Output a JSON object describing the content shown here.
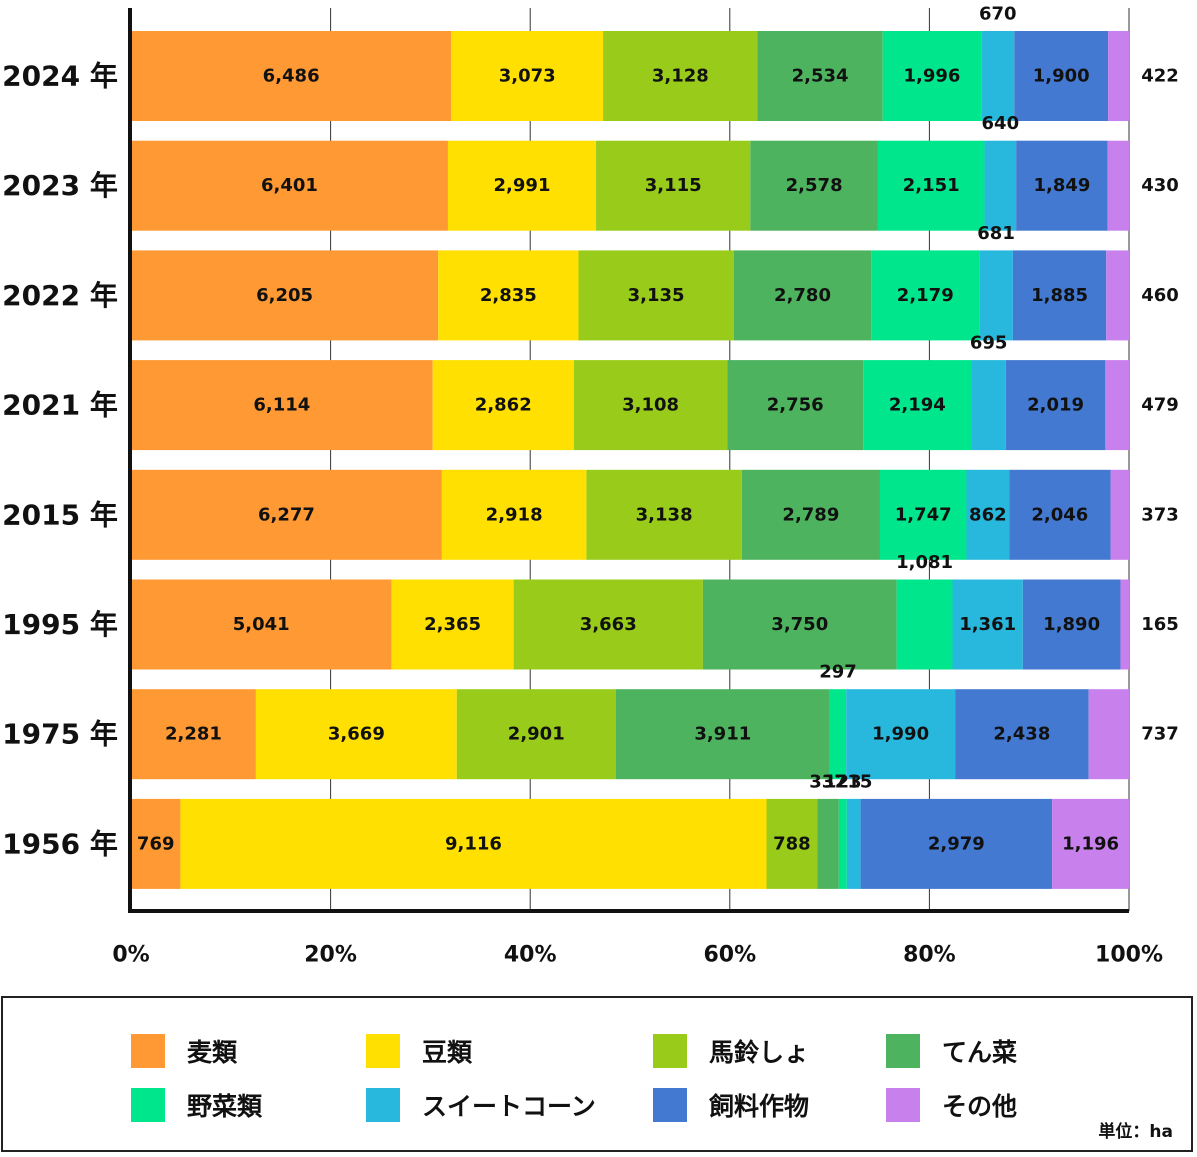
{
  "chart_data": {
    "type": "bar",
    "orientation": "horizontal",
    "stacked": "percent",
    "categories": [
      "2024 年",
      "2023 年",
      "2022 年",
      "2021 年",
      "2015 年",
      "1995 年",
      "1975 年",
      "1956 年"
    ],
    "series": [
      {
        "name": "麦類",
        "color": "#FF9933",
        "values": [
          6486,
          6401,
          6205,
          6114,
          6277,
          5041,
          2281,
          769
        ],
        "labels": [
          "6,486",
          "6,401",
          "6,205",
          "6,114",
          "6,277",
          "5,041",
          "2,281",
          "769"
        ]
      },
      {
        "name": "豆類",
        "color": "#FFE000",
        "values": [
          3073,
          2991,
          2835,
          2862,
          2918,
          2365,
          3669,
          9116
        ],
        "labels": [
          "3,073",
          "2,991",
          "2,835",
          "2,862",
          "2,918",
          "2,365",
          "3,669",
          "9,116"
        ]
      },
      {
        "name": "馬鈴しょ",
        "color": "#99CC1A",
        "values": [
          3128,
          3115,
          3135,
          3108,
          3138,
          3663,
          2901,
          788
        ],
        "labels": [
          "3,128",
          "3,115",
          "3,135",
          "3,108",
          "3,138",
          "3,663",
          "2,901",
          "788"
        ]
      },
      {
        "name": "てん菜",
        "color": "#4DB35E",
        "values": [
          2534,
          2578,
          2780,
          2756,
          2789,
          3750,
          3911,
          337
        ],
        "labels": [
          "2,534",
          "2,578",
          "2,780",
          "2,756",
          "2,789",
          "3,750",
          "3,911",
          "337"
        ]
      },
      {
        "name": "野菜類",
        "color": "#00E68C",
        "values": [
          1996,
          2151,
          2179,
          2194,
          1747,
          1081,
          297,
          123
        ],
        "labels": [
          "1,996",
          "2,151",
          "2,179",
          "2,194",
          "1,747",
          "1,081",
          "297",
          "123"
        ]
      },
      {
        "name": "スイートコーン",
        "color": "#29B8DD",
        "values": [
          670,
          640,
          681,
          695,
          862,
          1361,
          1990,
          215
        ],
        "labels": [
          "670",
          "640",
          "681",
          "695",
          "862",
          "1,361",
          "1,990",
          "215"
        ]
      },
      {
        "name": "飼料作物",
        "color": "#4479D1",
        "values": [
          1900,
          1849,
          1885,
          2019,
          2046,
          1890,
          2438,
          2979
        ],
        "labels": [
          "1,900",
          "1,849",
          "1,885",
          "2,019",
          "2,046",
          "1,890",
          "2,438",
          "2,979"
        ]
      },
      {
        "name": "その他",
        "color": "#C880EC",
        "values": [
          422,
          430,
          460,
          479,
          373,
          165,
          737,
          1196
        ],
        "labels": [
          "422",
          "430",
          "460",
          "479",
          "373",
          "165",
          "737",
          "1,196"
        ]
      }
    ],
    "x_ticks": [
      "0%",
      "20%",
      "40%",
      "60%",
      "80%",
      "100%"
    ],
    "xlim": [
      0,
      100
    ],
    "grid": "vertical",
    "unit_note": "単位：ha"
  }
}
